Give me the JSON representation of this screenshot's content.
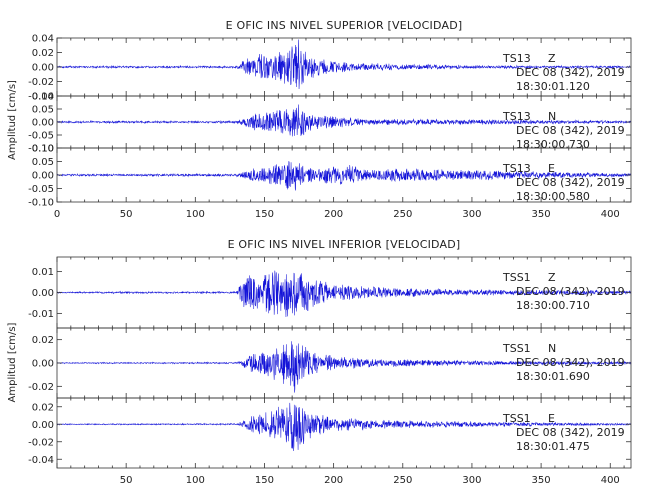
{
  "chart_data": [
    {
      "type": "line",
      "title": "E OFIC INS NIVEL SUPERIOR [VELOCIDAD]",
      "ylabel": "Amplitud [cm/s]",
      "xlim": [
        0,
        415
      ],
      "xticks": [
        "0",
        "50",
        "100",
        "150",
        "200",
        "250",
        "300",
        "350",
        "400"
      ],
      "series": [
        {
          "name": "TS13 Z",
          "station": "TS13",
          "component": "Z",
          "date": "DEC 08 (342), 2019",
          "time": "18:30:01.120",
          "ylim": [
            -0.04,
            0.04
          ],
          "yticks": [
            "0.04",
            "0.02",
            "0.00",
            "-0.02",
            "-0.04"
          ],
          "noise": 0.0015,
          "envelope": [
            [
              0,
              0.001
            ],
            [
              130,
              0.001
            ],
            [
              135,
              0.01
            ],
            [
              145,
              0.018
            ],
            [
              160,
              0.022
            ],
            [
              170,
              0.03
            ],
            [
              175,
              0.04
            ],
            [
              180,
              0.02
            ],
            [
              190,
              0.012
            ],
            [
              210,
              0.006
            ],
            [
              250,
              0.004
            ],
            [
              300,
              0.002
            ],
            [
              415,
              0.001
            ]
          ]
        },
        {
          "name": "TS13 N",
          "station": "TS13",
          "component": "N",
          "date": "DEC 08 (342), 2019",
          "time": "18:30:00.730",
          "ylim": [
            -0.1,
            0.1
          ],
          "yticks": [
            "0.10",
            "0.05",
            "0.00",
            "-0.05",
            "-0.10"
          ],
          "noise": 0.003,
          "envelope": [
            [
              0,
              0.003
            ],
            [
              130,
              0.004
            ],
            [
              140,
              0.03
            ],
            [
              155,
              0.045
            ],
            [
              165,
              0.05
            ],
            [
              175,
              0.085
            ],
            [
              180,
              0.04
            ],
            [
              190,
              0.03
            ],
            [
              220,
              0.012
            ],
            [
              300,
              0.01
            ],
            [
              415,
              0.004
            ]
          ]
        },
        {
          "name": "TS13 E",
          "station": "TS13",
          "component": "E",
          "date": "DEC 08 (342), 2019",
          "time": "18:30:00.580",
          "ylim": [
            -0.1,
            0.1
          ],
          "yticks": [
            "0.10",
            "0.05",
            "0.00",
            "-0.05",
            "-0.10"
          ],
          "noise": 0.003,
          "envelope": [
            [
              0,
              0.003
            ],
            [
              130,
              0.005
            ],
            [
              145,
              0.03
            ],
            [
              160,
              0.045
            ],
            [
              172,
              0.065
            ],
            [
              180,
              0.03
            ],
            [
              190,
              0.028
            ],
            [
              200,
              0.04
            ],
            [
              212,
              0.04
            ],
            [
              225,
              0.02
            ],
            [
              255,
              0.028
            ],
            [
              275,
              0.022
            ],
            [
              300,
              0.02
            ],
            [
              330,
              0.015
            ],
            [
              380,
              0.01
            ],
            [
              415,
              0.006
            ]
          ]
        }
      ]
    },
    {
      "type": "line",
      "title": "E OFIC INS NIVEL INFERIOR [VELOCIDAD]",
      "ylabel": "Amplitud [cm/s]",
      "xlim": [
        0,
        415
      ],
      "xticks": [
        "50",
        "100",
        "150",
        "200",
        "250",
        "300",
        "350",
        "400"
      ],
      "series": [
        {
          "name": "TSS1 Z",
          "station": "TSS1",
          "component": "Z",
          "date": "DEC 08 (342), 2019",
          "time": "18:30:00.710",
          "ylim": [
            -0.017,
            0.017
          ],
          "yticks": [
            "0.01",
            "0.00",
            "-0.01"
          ],
          "noise": 0.0004,
          "envelope": [
            [
              0,
              0.0003
            ],
            [
              130,
              0.0004
            ],
            [
              135,
              0.008
            ],
            [
              150,
              0.01
            ],
            [
              165,
              0.013
            ],
            [
              175,
              0.012
            ],
            [
              185,
              0.008
            ],
            [
              200,
              0.004
            ],
            [
              250,
              0.002
            ],
            [
              300,
              0.0015
            ],
            [
              415,
              0.0008
            ]
          ]
        },
        {
          "name": "TSS1 N",
          "station": "TSS1",
          "component": "N",
          "date": "DEC 08 (342), 2019",
          "time": "18:30:01.690",
          "ylim": [
            -0.03,
            0.03
          ],
          "yticks": [
            "0.02",
            "0.00",
            "-0.02"
          ],
          "noise": 0.0005,
          "envelope": [
            [
              0,
              0.0004
            ],
            [
              130,
              0.0006
            ],
            [
              140,
              0.008
            ],
            [
              155,
              0.014
            ],
            [
              165,
              0.02
            ],
            [
              170,
              0.028
            ],
            [
              178,
              0.016
            ],
            [
              190,
              0.008
            ],
            [
              220,
              0.004
            ],
            [
              300,
              0.002
            ],
            [
              415,
              0.001
            ]
          ]
        },
        {
          "name": "TSS1 E",
          "station": "TSS1",
          "component": "E",
          "date": "DEC 08 (342), 2019",
          "time": "18:30:01.475",
          "ylim": [
            -0.05,
            0.03
          ],
          "yticks": [
            "0.02",
            "0.00",
            "-0.02",
            "-0.04"
          ],
          "noise": 0.0006,
          "envelope": [
            [
              0,
              0.0005
            ],
            [
              130,
              0.0008
            ],
            [
              140,
              0.01
            ],
            [
              155,
              0.016
            ],
            [
              165,
              0.024
            ],
            [
              172,
              0.04
            ],
            [
              180,
              0.02
            ],
            [
              195,
              0.01
            ],
            [
              230,
              0.005
            ],
            [
              300,
              0.003
            ],
            [
              415,
              0.001
            ]
          ]
        }
      ]
    }
  ]
}
